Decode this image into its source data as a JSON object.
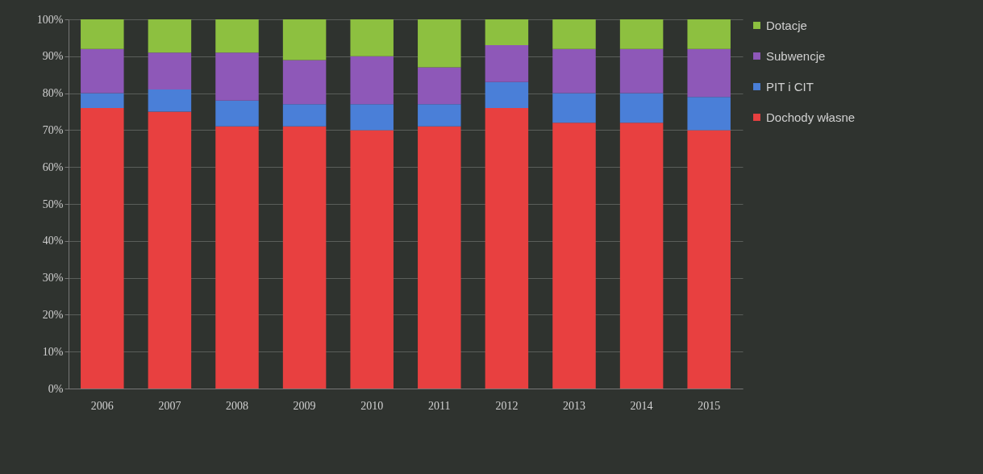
{
  "chart_data": {
    "type": "bar",
    "stacked": true,
    "categories": [
      "2006",
      "2007",
      "2008",
      "2009",
      "2010",
      "2011",
      "2012",
      "2013",
      "2014",
      "2015"
    ],
    "series": [
      {
        "name": "Dochody własne",
        "color": "#e84040",
        "values": [
          76,
          75,
          71,
          71,
          70,
          71,
          76,
          72,
          72,
          70
        ]
      },
      {
        "name": "PIT i CIT",
        "color": "#4a7fd8",
        "values": [
          4,
          6,
          7,
          6,
          7,
          6,
          7,
          8,
          8,
          9
        ]
      },
      {
        "name": "Subwencje",
        "color": "#8e58b8",
        "values": [
          12,
          10,
          13,
          12,
          13,
          10,
          10,
          12,
          12,
          13
        ]
      },
      {
        "name": "Dotacje",
        "color": "#8dc040",
        "values": [
          8,
          9,
          9,
          11,
          10,
          13,
          7,
          8,
          8,
          8
        ]
      }
    ],
    "ylim": [
      0,
      100
    ],
    "yticks": [
      {
        "value": 0,
        "label": "0%"
      },
      {
        "value": 10,
        "label": "10%"
      },
      {
        "value": 20,
        "label": "20%"
      },
      {
        "value": 30,
        "label": "30%"
      },
      {
        "value": 40,
        "label": "40%"
      },
      {
        "value": 50,
        "label": "50%"
      },
      {
        "value": 60,
        "label": "60%"
      },
      {
        "value": 70,
        "label": "70%"
      },
      {
        "value": 80,
        "label": "80%"
      },
      {
        "value": 90,
        "label": "90%"
      },
      {
        "value": 100,
        "label": "100%"
      }
    ],
    "grid": "y",
    "legend": "right"
  }
}
